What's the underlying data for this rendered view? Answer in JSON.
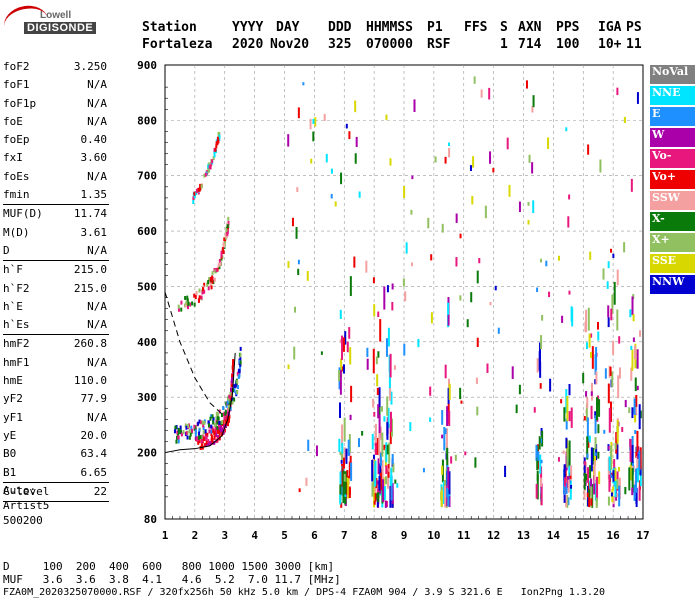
{
  "logo": {
    "line1": "Lowell",
    "line2": "DIGISONDE"
  },
  "header": {
    "labels": [
      "Station",
      "YYYY",
      "DAY",
      "DDD",
      "HHMMSS",
      "P1",
      "FFS",
      "S",
      "AXN",
      "PPS",
      "IGA",
      "PS"
    ],
    "values": [
      "Fortaleza",
      "2020",
      "Nov20",
      "325",
      "070000",
      "RSF",
      "1",
      "714",
      "100",
      "10+",
      "11"
    ]
  },
  "params": [
    {
      "name": "foF2",
      "value": "3.250"
    },
    {
      "name": "foF1",
      "value": "N/A"
    },
    {
      "name": "foF1p",
      "value": "N/A"
    },
    {
      "name": "foE",
      "value": "N/A"
    },
    {
      "name": "foEp",
      "value": "0.40"
    },
    {
      "name": "fxI",
      "value": "3.60"
    },
    {
      "name": "foEs",
      "value": "N/A"
    },
    {
      "name": "fmin",
      "value": "1.35"
    },
    {
      "name": "MUF(D)",
      "value": "11.74"
    },
    {
      "name": "M(D)",
      "value": "3.61"
    },
    {
      "name": "D",
      "value": "N/A"
    },
    {
      "name": "h`F",
      "value": "215.0"
    },
    {
      "name": "h`F2",
      "value": "215.0"
    },
    {
      "name": "h`E",
      "value": "N/A"
    },
    {
      "name": "h`Es",
      "value": "N/A"
    },
    {
      "name": "hmF2",
      "value": "260.8"
    },
    {
      "name": "hmF1",
      "value": "N/A"
    },
    {
      "name": "hmE",
      "value": "110.0"
    },
    {
      "name": "yF2",
      "value": "77.9"
    },
    {
      "name": "yF1",
      "value": "N/A"
    },
    {
      "name": "yE",
      "value": "20.0"
    },
    {
      "name": "B0",
      "value": "63.4"
    },
    {
      "name": "B1",
      "value": "6.65"
    },
    {
      "name": "C-level",
      "value": "22"
    }
  ],
  "auto": {
    "line1": "Auto:",
    "line2": "Artist5",
    "line3": "500200"
  },
  "legend": [
    {
      "label": "NoVal",
      "color": "#808080",
      "text": "#ffffff"
    },
    {
      "label": "NNE",
      "color": "#00e5ff",
      "text": "#ffffff"
    },
    {
      "label": "E",
      "color": "#1e90ff",
      "text": "#ffffff"
    },
    {
      "label": "W",
      "color": "#aa00aa",
      "text": "#ffffff"
    },
    {
      "label": "Vo-",
      "color": "#e8177e",
      "text": "#ffffff"
    },
    {
      "label": "Vo+",
      "color": "#ee0000",
      "text": "#ffffff"
    },
    {
      "label": "SSW",
      "color": "#f4a0a0",
      "text": "#ffffff"
    },
    {
      "label": "X-",
      "color": "#0a7a0a",
      "text": "#ffffff"
    },
    {
      "label": "X+",
      "color": "#90c060",
      "text": "#ffffff"
    },
    {
      "label": "SSE",
      "color": "#d8d800",
      "text": "#ffffff"
    },
    {
      "label": "NNW",
      "color": "#0000d0",
      "text": "#ffffff"
    }
  ],
  "footer": {
    "d_line": "D     100  200  400  600   800 1000 1500 3000 [km]",
    "muf_line": "MUF   3.6  3.6  3.8  4.1   4.6  5.2  7.0 11.7 [MHz]",
    "file_line": "FZA0M_2020325070000.RSF / 320fx256h 50 kHz 5.0 km / DPS-4 FZA0M 904 / 3.9 S 321.6 E   Ion2Png 1.3.20"
  },
  "chart_data": {
    "type": "scatter",
    "title": "",
    "xlabel": "",
    "ylabel": "",
    "xlim": [
      1,
      17
    ],
    "ylim": [
      80,
      900
    ],
    "xticks": [
      1,
      2,
      3,
      4,
      5,
      6,
      7,
      8,
      9,
      10,
      11,
      12,
      13,
      14,
      15,
      16,
      17
    ],
    "yticks": [
      80,
      200,
      300,
      400,
      500,
      600,
      700,
      800,
      900
    ],
    "grid": "dashed",
    "o_trace": [
      [
        2.0,
        220
      ],
      [
        2.3,
        225
      ],
      [
        2.6,
        232
      ],
      [
        2.8,
        240
      ],
      [
        3.0,
        255
      ],
      [
        3.1,
        270
      ],
      [
        3.15,
        290
      ],
      [
        3.2,
        320
      ],
      [
        3.25,
        360
      ]
    ],
    "x_trace": [
      [
        1.3,
        235
      ],
      [
        1.6,
        238
      ],
      [
        2.0,
        243
      ],
      [
        2.4,
        250
      ],
      [
        2.7,
        262
      ],
      [
        3.0,
        280
      ],
      [
        3.2,
        300
      ],
      [
        3.4,
        330
      ],
      [
        3.5,
        380
      ]
    ],
    "o_high": [
      [
        1.4,
        470
      ],
      [
        2.0,
        480
      ],
      [
        2.5,
        510
      ],
      [
        2.8,
        545
      ],
      [
        3.0,
        590
      ],
      [
        3.1,
        620
      ]
    ],
    "o_2hop": [
      [
        1.9,
        660
      ],
      [
        2.3,
        700
      ],
      [
        2.6,
        740
      ],
      [
        2.8,
        780
      ]
    ],
    "profile": [
      [
        1.0,
        200
      ],
      [
        1.5,
        205
      ],
      [
        2.0,
        207
      ],
      [
        2.5,
        212
      ],
      [
        2.9,
        230
      ],
      [
        3.1,
        260
      ],
      [
        3.25,
        300
      ],
      [
        3.35,
        380
      ]
    ],
    "dashed_curve": [
      [
        1.0,
        490
      ],
      [
        1.5,
        400
      ],
      [
        2.0,
        335
      ],
      [
        2.5,
        290
      ],
      [
        2.9,
        270
      ]
    ],
    "stripes": [
      [
        6.8,
        7.2
      ],
      [
        7.9,
        8.6
      ],
      [
        10.2,
        10.5
      ],
      [
        13.4,
        13.6
      ],
      [
        14.3,
        14.6
      ],
      [
        15.0,
        15.5
      ],
      [
        15.8,
        16.2
      ],
      [
        16.5,
        16.9
      ]
    ]
  }
}
